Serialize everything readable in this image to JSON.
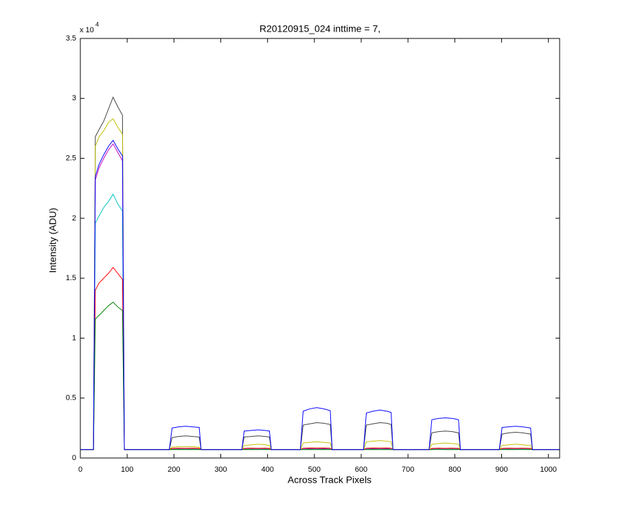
{
  "chart_data": {
    "type": "line",
    "title": "R20120915_024 inttime = 7,",
    "x_label": "Across Track Pixels",
    "y_label": "Intensity (ADU)",
    "y_exponent_base": "x 10",
    "y_exponent_power": "4",
    "xlim": [
      0,
      1024
    ],
    "ylim": [
      0,
      35000
    ],
    "xticks": [
      0,
      100,
      200,
      300,
      400,
      500,
      600,
      700,
      800,
      900,
      1000
    ],
    "yticks": [
      0,
      {
        "value": 5000,
        "label": "0.5"
      },
      {
        "value": 10000,
        "label": "1"
      },
      {
        "value": 15000,
        "label": "1.5"
      },
      {
        "value": 20000,
        "label": "2"
      },
      {
        "value": 25000,
        "label": "2.5"
      },
      {
        "value": 30000,
        "label": "3"
      },
      {
        "value": 35000,
        "label": "3.5"
      }
    ],
    "x": [
      0,
      28,
      32,
      40,
      50,
      60,
      70,
      80,
      90,
      94,
      98,
      120,
      190,
      196,
      210,
      225,
      240,
      254,
      258,
      345,
      350,
      365,
      380,
      395,
      404,
      408,
      470,
      476,
      490,
      505,
      520,
      534,
      538,
      605,
      611,
      625,
      640,
      655,
      664,
      668,
      745,
      751,
      765,
      780,
      795,
      808,
      812,
      895,
      901,
      915,
      930,
      945,
      962,
      966,
      1024
    ],
    "series": [
      {
        "color": "#404040",
        "values": [
          700,
          700,
          26800,
          27400,
          28100,
          29100,
          30100,
          29300,
          28600,
          700,
          700,
          700,
          700,
          1700,
          1800,
          1850,
          1800,
          1750,
          700,
          700,
          1750,
          1800,
          1850,
          1800,
          1750,
          700,
          700,
          2750,
          2850,
          2950,
          2900,
          2800,
          700,
          700,
          2750,
          2850,
          2950,
          2900,
          2800,
          700,
          700,
          2100,
          2200,
          2250,
          2200,
          2100,
          700,
          700,
          2000,
          2100,
          2150,
          2100,
          2000,
          700,
          700
        ]
      },
      {
        "color": "#bfbf00",
        "values": [
          700,
          700,
          26000,
          26800,
          27300,
          28000,
          28300,
          27600,
          27000,
          700,
          700,
          700,
          700,
          900,
          950,
          950,
          950,
          900,
          700,
          700,
          1050,
          1100,
          1150,
          1100,
          1050,
          700,
          700,
          1250,
          1300,
          1350,
          1300,
          1250,
          700,
          700,
          1350,
          1400,
          1450,
          1400,
          1350,
          700,
          700,
          1150,
          1200,
          1250,
          1200,
          1150,
          700,
          700,
          1050,
          1100,
          1150,
          1100,
          1050,
          700,
          700
        ]
      },
      {
        "color": "#bf00bf",
        "values": [
          700,
          700,
          23200,
          24200,
          25000,
          25700,
          26200,
          25500,
          24800,
          700,
          700,
          700,
          700,
          750,
          760,
          750,
          760,
          750,
          700,
          700,
          750,
          760,
          750,
          760,
          750,
          700,
          700,
          760,
          770,
          760,
          770,
          760,
          700,
          700,
          760,
          770,
          760,
          770,
          760,
          700,
          700,
          750,
          760,
          750,
          760,
          750,
          700,
          700,
          750,
          760,
          750,
          760,
          750,
          700,
          700
        ]
      },
      {
        "color": "#00bfbf",
        "values": [
          700,
          700,
          19600,
          20200,
          20900,
          21400,
          22000,
          21200,
          20600,
          700,
          700,
          700,
          700,
          720,
          730,
          720,
          730,
          720,
          700,
          700,
          720,
          730,
          720,
          730,
          720,
          700,
          700,
          720,
          730,
          720,
          730,
          720,
          700,
          700,
          720,
          730,
          720,
          730,
          720,
          700,
          700,
          720,
          730,
          720,
          730,
          720,
          700,
          700,
          720,
          730,
          720,
          730,
          720,
          700,
          700
        ]
      },
      {
        "color": "#ff0000",
        "values": [
          700,
          700,
          14000,
          14600,
          15000,
          15400,
          15900,
          15400,
          14900,
          700,
          700,
          700,
          700,
          800,
          820,
          810,
          820,
          800,
          700,
          700,
          800,
          820,
          810,
          820,
          800,
          700,
          700,
          820,
          840,
          830,
          840,
          820,
          700,
          700,
          820,
          840,
          830,
          840,
          820,
          700,
          700,
          800,
          820,
          810,
          820,
          800,
          700,
          700,
          800,
          820,
          810,
          820,
          800,
          700,
          700
        ]
      },
      {
        "color": "#008000",
        "values": [
          700,
          700,
          11600,
          11900,
          12300,
          12700,
          13000,
          12600,
          12300,
          700,
          700,
          700,
          700,
          700,
          710,
          700,
          710,
          700,
          700,
          700,
          700,
          710,
          700,
          710,
          700,
          700,
          700,
          700,
          710,
          700,
          710,
          700,
          700,
          700,
          700,
          710,
          700,
          710,
          700,
          700,
          700,
          700,
          710,
          700,
          710,
          700,
          700,
          700,
          700,
          710,
          700,
          710,
          700,
          700,
          700
        ]
      },
      {
        "color": "#0000ff",
        "values": [
          700,
          700,
          23500,
          24500,
          25300,
          26000,
          26500,
          25800,
          25200,
          700,
          700,
          700,
          700,
          2500,
          2600,
          2650,
          2600,
          2550,
          700,
          700,
          2250,
          2300,
          2350,
          2300,
          2250,
          700,
          700,
          3900,
          4100,
          4200,
          4100,
          3950,
          700,
          700,
          3750,
          3900,
          4000,
          3900,
          3800,
          700,
          700,
          3200,
          3300,
          3350,
          3300,
          3200,
          700,
          700,
          2550,
          2600,
          2650,
          2600,
          2500,
          700,
          700
        ]
      }
    ]
  }
}
